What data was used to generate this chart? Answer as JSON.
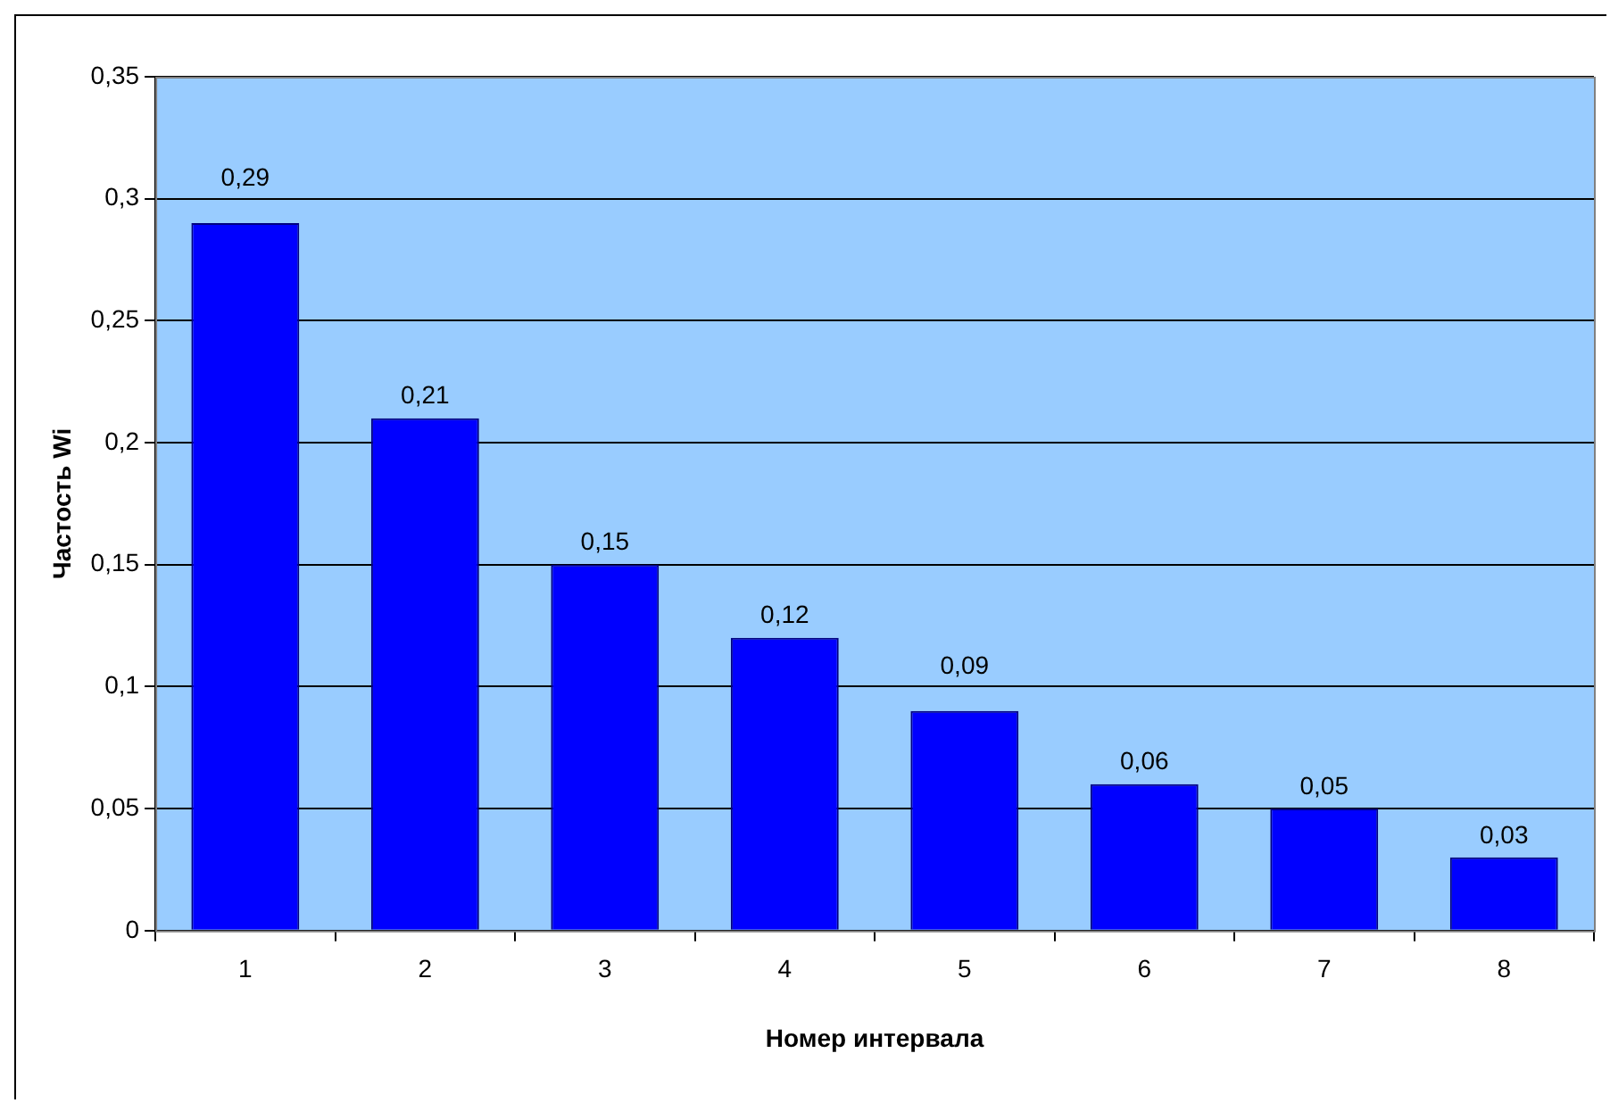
{
  "chart_data": {
    "type": "bar",
    "xlabel": "Номер интервала",
    "ylabel": "Частость Wi",
    "categories": [
      "1",
      "2",
      "3",
      "4",
      "5",
      "6",
      "7",
      "8"
    ],
    "series": [
      {
        "color": "#0000ff",
        "values": [
          0.29,
          0.21,
          0.15,
          0.12,
          0.09,
          0.06,
          0.05,
          0.03
        ],
        "value_labels": [
          "0,29",
          "0,21",
          "0,15",
          "0,12",
          "0,09",
          "0,06",
          "0,05",
          "0,03"
        ]
      }
    ],
    "ylim": [
      0,
      0.35
    ],
    "yticks": [
      {
        "value": 0,
        "label": "0"
      },
      {
        "value": 0.05,
        "label": "0,05"
      },
      {
        "value": 0.1,
        "label": "0,1"
      },
      {
        "value": 0.15,
        "label": "0,15"
      },
      {
        "value": 0.2,
        "label": "0,2"
      },
      {
        "value": 0.25,
        "label": "0,25"
      },
      {
        "value": 0.3,
        "label": "0,3"
      },
      {
        "value": 0.35,
        "label": "0,35"
      }
    ],
    "grid": "y",
    "legend": false
  }
}
